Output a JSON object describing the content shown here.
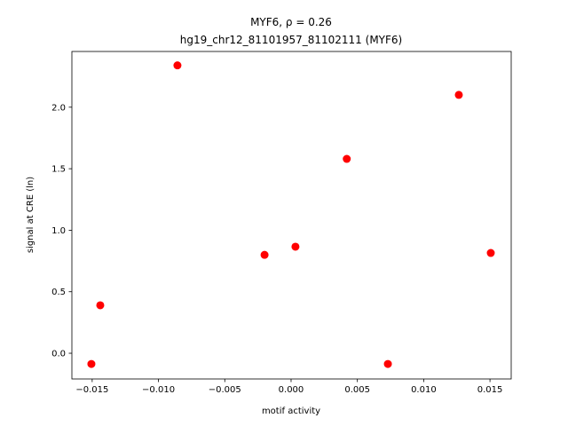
{
  "chart_data": {
    "type": "scatter",
    "title": "MYF6, ρ = 0.26",
    "subtitle": "hg19_chr12_81101957_81102111 (MYF6)",
    "x_label": "motif activity",
    "y_label": "signal at CRE (ln)",
    "color": "#ff0000",
    "x": [
      -0.01506,
      -0.01439,
      -0.00857,
      -0.002,
      0.00033,
      0.0042,
      0.0073,
      0.01265,
      0.01506
    ],
    "values": [
      -0.087,
      0.39,
      2.34,
      0.8,
      0.866,
      1.58,
      -0.087,
      2.1,
      0.815
    ],
    "xlim": [
      -0.01653,
      0.0166
    ],
    "ylim": [
      -0.209,
      2.453
    ],
    "xticks": [
      {
        "value": -0.015,
        "label": "−0.015"
      },
      {
        "value": -0.01,
        "label": "−0.010"
      },
      {
        "value": -0.005,
        "label": "−0.005"
      },
      {
        "value": 0,
        "label": "0.000"
      },
      {
        "value": 0.005,
        "label": "0.005"
      },
      {
        "value": 0.01,
        "label": "0.010"
      },
      0.015
    ],
    "yticks": [
      {
        "value": 0,
        "label": "0.0"
      },
      0.5,
      {
        "value": 1,
        "label": "1.0"
      },
      1.5,
      {
        "value": 2,
        "label": "2.0"
      }
    ]
  }
}
